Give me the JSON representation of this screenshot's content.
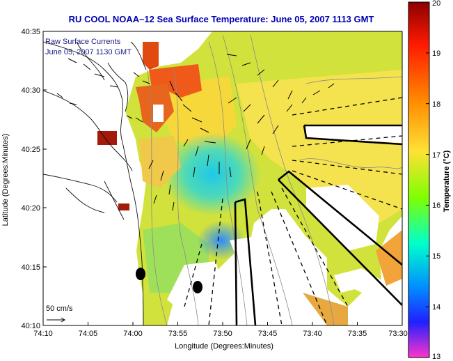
{
  "title": "RU COOL   NOAA–12  Sea Surface Temperature:  June 05, 2007 1113 GMT",
  "overlay": {
    "line1": "Raw Surface Currents",
    "line2": "June 05, 2007 1130 GMT"
  },
  "scale_label": "50 cm/s",
  "x_axis": {
    "label": "Longitude (Degrees:Minutes)",
    "ticks": [
      "74:10",
      "74:05",
      "74:00",
      "73:55",
      "73:50",
      "73:45",
      "73:40",
      "73:35",
      "73:30"
    ]
  },
  "y_axis": {
    "label": "Latitude (Degrees:Minutes)",
    "ticks": [
      "40:35",
      "40:30",
      "40:25",
      "40:20",
      "40:15",
      "40:10"
    ]
  },
  "colorbar": {
    "label": "Temperature (°C)",
    "ticks": [
      "20",
      "19",
      "18",
      "17",
      "16",
      "15",
      "14",
      "13"
    ],
    "colors": [
      "#8b0000",
      "#ff0000",
      "#ff8c00",
      "#ffe135",
      "#7fff00",
      "#00ffff",
      "#0060ff",
      "#0000ff",
      "#ff33cc"
    ]
  },
  "colors": {
    "water_warm": "#f7e24a",
    "water_green": "#b8e04a",
    "water_cyan": "#3ad7c8",
    "hot": "#ef5a1a",
    "hot_dark": "#a31a0a",
    "land": "#ffffff"
  }
}
